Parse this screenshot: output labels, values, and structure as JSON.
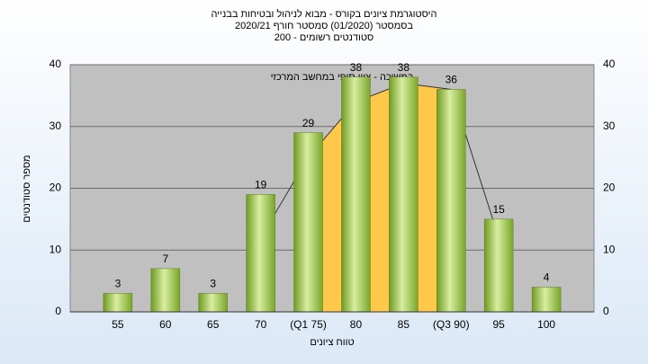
{
  "chart_data": {
    "type": "bar",
    "title": "היסטוגרמת ציונים בקורס - מבוא לניהול ובטיחות בבנייה",
    "subtitle": "בסמסטר (01/2020) סמסטר חורף 2020/21",
    "subtitle2": "סטודנטים רשומים - 200",
    "annotation": "במשיכה - ציון סופי במחשב המרכזי",
    "x_label": "טווח ציונים",
    "y_label": "מספר סטודנטים",
    "categories": [
      "55",
      "60",
      "65",
      "70",
      "(Q1 75)",
      "80",
      "85",
      "(Q3 90)",
      "95",
      "100"
    ],
    "values": [
      3,
      7,
      3,
      19,
      29,
      38,
      38,
      36,
      15,
      4
    ],
    "color": "#8db33a",
    "curve": {
      "values": [
        null,
        null,
        null,
        12,
        25,
        34,
        37,
        36,
        12,
        null
      ],
      "color": "#ffc84a"
    },
    "ylim": [
      0,
      40
    ],
    "yticks": [
      0,
      10,
      20,
      30,
      40
    ],
    "grid": true
  }
}
